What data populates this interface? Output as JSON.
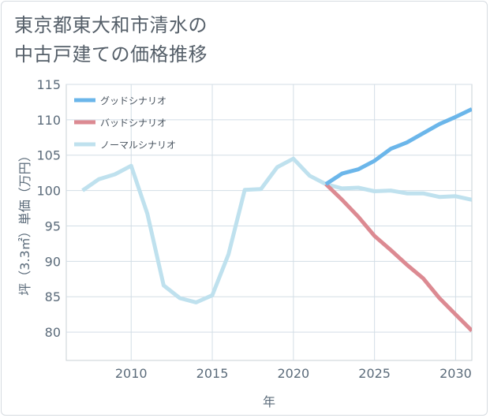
{
  "chart_data": {
    "type": "line",
    "title_lines": [
      "東京都東大和市清水の",
      "中古戸建ての価格推移"
    ],
    "xlabel": "年",
    "ylabel": "坪（3.3㎡）単価（万円）",
    "xlim": [
      2006,
      2031
    ],
    "ylim": [
      76,
      115
    ],
    "x_ticks": [
      2010,
      2015,
      2020,
      2025,
      2030
    ],
    "y_ticks": [
      80,
      85,
      90,
      95,
      100,
      105,
      110,
      115
    ],
    "series": [
      {
        "name": "グッドシナリオ",
        "color": "#6bb6ea",
        "x": [
          2022,
          2023,
          2024,
          2025,
          2026,
          2027,
          2028,
          2029,
          2030,
          2031
        ],
        "values": [
          100.9,
          102.4,
          103.0,
          104.2,
          105.9,
          106.8,
          108.1,
          109.4,
          110.4,
          111.5
        ]
      },
      {
        "name": "バッドシナリオ",
        "color": "#dc8a92",
        "x": [
          2022,
          2023,
          2024,
          2025,
          2026,
          2027,
          2028,
          2029,
          2030,
          2031
        ],
        "values": [
          100.9,
          98.7,
          96.3,
          93.6,
          91.6,
          89.5,
          87.6,
          84.8,
          82.5,
          80.2
        ]
      },
      {
        "name": "ノーマルシナリオ",
        "color": "#bfe1ee",
        "x": [
          2007,
          2008,
          2009,
          2010,
          2011,
          2012,
          2013,
          2014,
          2015,
          2016,
          2017,
          2018,
          2019,
          2020,
          2021,
          2022,
          2023,
          2024,
          2025,
          2026,
          2027,
          2028,
          2029,
          2030,
          2031
        ],
        "values": [
          100.0,
          101.6,
          102.3,
          103.5,
          96.7,
          86.6,
          84.8,
          84.2,
          85.2,
          91.0,
          100.1,
          100.2,
          103.3,
          104.5,
          102.1,
          100.9,
          100.3,
          100.4,
          99.9,
          100.0,
          99.6,
          99.6,
          99.1,
          99.2,
          98.7
        ]
      }
    ]
  }
}
